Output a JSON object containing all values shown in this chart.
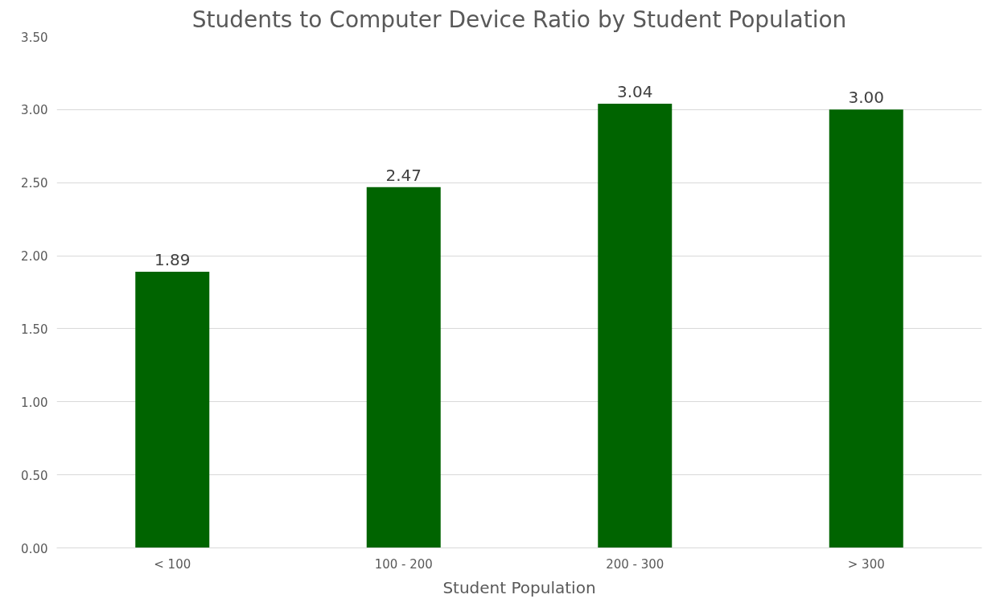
{
  "chart_data": {
    "type": "bar",
    "title": "Students to Computer Device Ratio by Student Population",
    "xlabel": "Student Population",
    "categories": [
      "< 100",
      "100 - 200",
      "200 - 300",
      "> 300"
    ],
    "values": [
      1.89,
      2.47,
      3.04,
      3.0
    ],
    "color": "#006400",
    "ylim": [
      0,
      3.5
    ],
    "yticks": [
      {
        "value": 0,
        "label": "0.00"
      },
      {
        "value": 0.5,
        "label": "0.50"
      },
      {
        "value": 1,
        "label": "1.00"
      },
      {
        "value": 1.5,
        "label": "1.50"
      },
      {
        "value": 2,
        "label": "2.00"
      },
      {
        "value": 2.5,
        "label": "2.50"
      },
      {
        "value": 3,
        "label": "3.00"
      },
      {
        "value": 3.5,
        "label": "3.50"
      }
    ],
    "value_labels": [
      "1.89",
      "2.47",
      "3.04",
      "3.00"
    ],
    "grid": "y"
  }
}
